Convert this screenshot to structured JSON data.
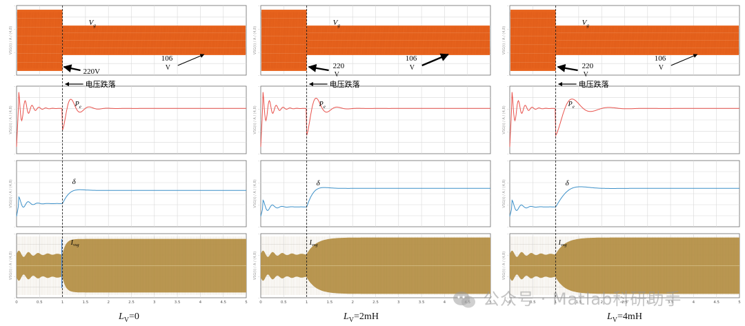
{
  "chart_data": [
    {
      "type": "line",
      "panel_label": "L_V=0",
      "label_main": "L",
      "label_sub": "V",
      "label_value": "=0",
      "drop_time": 1.0,
      "x_range": [
        0,
        5
      ],
      "x_ticks": [
        "0",
        "0.5",
        "1",
        "1.5",
        "2",
        "2.5",
        "3",
        "3.5",
        "4",
        "4.5",
        "5"
      ],
      "annotations": {
        "vg_label": "V",
        "vg_sub": "g",
        "vg_before": "220V",
        "vg_after": "106",
        "vg_after_unit": "V",
        "drop_label": "电压跌落",
        "pe_label": "P",
        "pe_sub": "e",
        "delta_label": "δ",
        "ivsg_label": "I",
        "ivsg_sub": "vsg"
      },
      "series": [
        {
          "name": "Vg",
          "amplitude_before": 220,
          "amplitude_after": 106
        },
        {
          "name": "Pe",
          "response": "transient",
          "settle_level": 0.5
        },
        {
          "name": "δ",
          "level_before": 0.35,
          "level_after": 0.55
        },
        {
          "name": "Ivsg",
          "amplitude_before": 0.5,
          "amplitude_after": 0.95
        }
      ]
    },
    {
      "type": "line",
      "panel_label": "L_V=2mH",
      "label_main": "L",
      "label_sub": "V",
      "label_value": "=2mH",
      "drop_time": 1.0,
      "x_range": [
        0,
        5
      ],
      "x_ticks": [
        "0",
        "0.5",
        "1",
        "1.5",
        "2",
        "2.5",
        "3",
        "3.5",
        "4",
        "4.5",
        "5"
      ],
      "annotations": {
        "vg_label": "V",
        "vg_sub": "g",
        "vg_before": "220",
        "vg_before_unit": "V",
        "vg_after": "106",
        "vg_after_unit": "V",
        "drop_label": "电压跌落",
        "pe_label": "P",
        "pe_sub": "e",
        "delta_label": "δ",
        "ivsg_label": "I",
        "ivsg_sub": "vsg"
      },
      "series": [
        {
          "name": "Vg",
          "amplitude_before": 220,
          "amplitude_after": 106
        },
        {
          "name": "Pe",
          "response": "transient",
          "settle_level": 0.5
        },
        {
          "name": "δ",
          "level_before": 0.3,
          "level_after": 0.58
        },
        {
          "name": "Ivsg",
          "amplitude_before": 0.5,
          "amplitude_after": 1.0
        }
      ]
    },
    {
      "type": "line",
      "panel_label": "L_V=4mH",
      "label_main": "L",
      "label_sub": "V",
      "label_value": "=4mH",
      "drop_time": 1.0,
      "x_range": [
        0,
        5
      ],
      "x_ticks": [
        "0",
        "0.5",
        "1",
        "1.5",
        "2",
        "2.5",
        "3",
        "3.5",
        "4",
        "4.5",
        "5"
      ],
      "annotations": {
        "vg_label": "V",
        "vg_sub": "g",
        "vg_before": "220",
        "vg_before_unit": "V",
        "vg_after": "106",
        "vg_after_unit": "V",
        "drop_label": "电压跌落",
        "pe_label": "P",
        "pe_sub": "e",
        "delta_label": "δ",
        "ivsg_label": "I",
        "ivsg_sub": "vsg"
      },
      "series": [
        {
          "name": "Vg",
          "amplitude_before": 220,
          "amplitude_after": 106
        },
        {
          "name": "Pe",
          "response": "transient",
          "settle_level": 0.5
        },
        {
          "name": "δ",
          "level_before": 0.3,
          "level_after": 0.58
        },
        {
          "name": "Ivsg",
          "amplitude_before": 0.5,
          "amplitude_after": 1.0
        }
      ]
    }
  ],
  "watermark": "公众号 · Matlab科研助手",
  "colors": {
    "vg": "#e8641e",
    "vg_dark": "#c8460a",
    "pe": "#e8504a",
    "delta": "#3a8fc8",
    "ivsg": "#b8944a",
    "ivsg_dark": "#8a6a2c",
    "grid": "#d8d8d8",
    "frame": "#6a6a6a"
  }
}
